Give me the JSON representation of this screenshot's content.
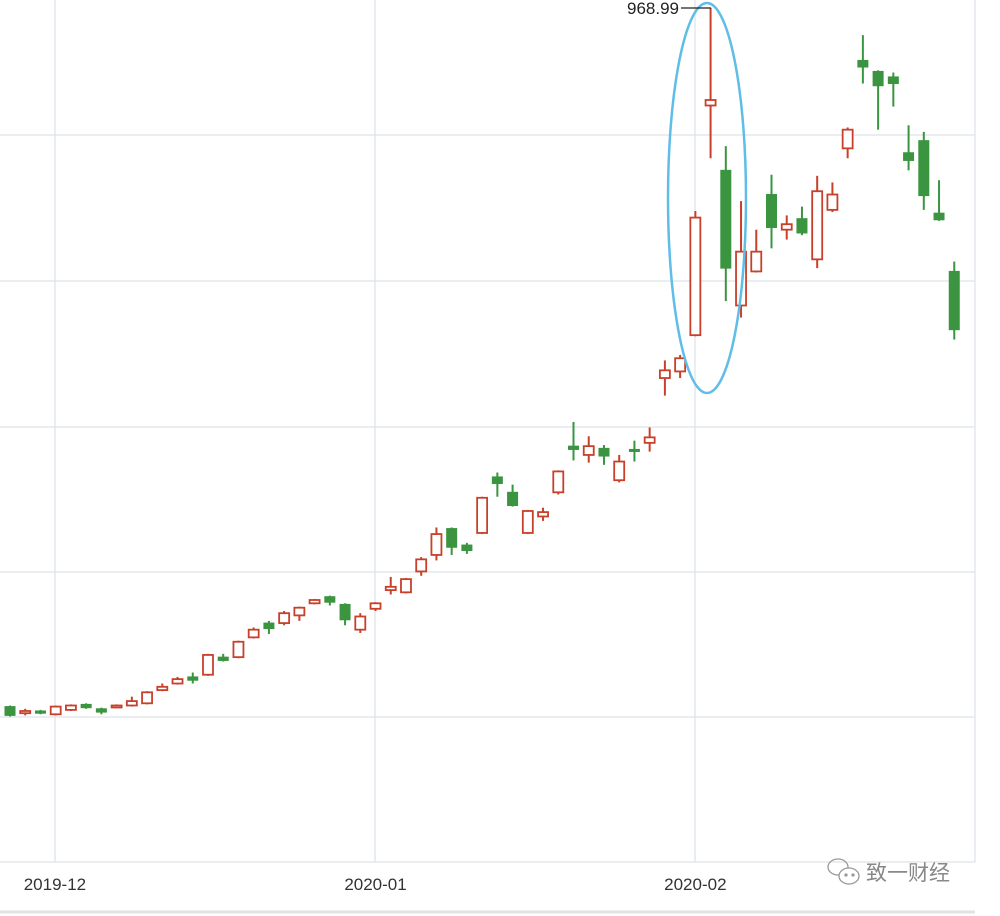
{
  "chart_data": {
    "type": "candlestick",
    "title": "",
    "xlabel": "",
    "ylabel": "",
    "grid": true,
    "colors": {
      "up": "#c8402a",
      "down": "#3a9440",
      "annotation_ellipse": "#5fbde8",
      "grid": "#dde3e8"
    },
    "x_ticks": [
      {
        "label": "2019-12",
        "index": 2.95
      },
      {
        "label": "2020-01",
        "index": 24.0
      },
      {
        "label": "2020-02",
        "index": 45.0
      }
    ],
    "annotation": {
      "label": "968.99",
      "candle_index": 46
    },
    "watermark": "致一财经",
    "candles": [
      [
        333,
        334,
        324,
        325
      ],
      [
        327,
        331,
        325,
        329
      ],
      [
        329,
        330,
        326,
        327
      ],
      [
        326,
        334,
        325,
        333
      ],
      [
        330,
        335,
        329,
        334
      ],
      [
        335,
        336,
        331,
        332
      ],
      [
        331,
        332,
        326,
        328
      ],
      [
        333,
        335,
        332,
        334
      ],
      [
        334,
        342,
        333,
        338
      ],
      [
        336,
        347,
        335,
        346
      ],
      [
        348,
        354,
        347,
        351
      ],
      [
        354,
        360,
        353,
        358
      ],
      [
        360,
        364,
        354,
        357
      ],
      [
        362,
        381,
        361,
        380
      ],
      [
        378,
        381,
        374,
        375
      ],
      [
        378,
        393,
        377,
        392
      ],
      [
        396,
        405,
        395,
        403
      ],
      [
        409,
        411,
        399,
        404
      ],
      [
        409,
        420,
        407,
        418
      ],
      [
        416,
        424,
        411,
        423
      ],
      [
        427,
        431,
        426,
        430
      ],
      [
        433,
        434,
        425,
        428
      ],
      [
        426,
        427,
        407,
        412
      ],
      [
        403,
        418,
        400,
        415
      ],
      [
        422,
        428,
        420,
        427
      ],
      [
        439,
        451,
        435,
        442
      ],
      [
        437,
        450,
        436,
        449
      ],
      [
        456,
        469,
        452,
        467
      ],
      [
        471,
        496,
        466,
        490
      ],
      [
        495,
        496,
        471,
        478
      ],
      [
        480,
        482,
        472,
        475
      ],
      [
        491,
        524,
        490,
        523
      ],
      [
        542,
        546,
        524,
        536
      ],
      [
        528,
        535,
        515,
        516
      ],
      [
        491,
        512,
        490,
        511
      ],
      [
        506,
        514,
        502,
        510
      ],
      [
        528,
        548,
        526,
        547
      ],
      [
        570,
        592,
        557,
        567
      ],
      [
        562,
        579,
        555,
        570
      ],
      [
        568,
        571,
        553,
        561
      ],
      [
        539,
        562,
        537,
        556
      ],
      [
        567,
        575,
        556,
        566
      ],
      [
        573,
        587,
        565,
        578
      ],
      [
        632,
        648,
        616,
        639
      ],
      [
        638,
        653,
        632,
        650
      ],
      [
        671,
        784,
        670,
        778
      ],
      [
        880,
        968.99,
        832,
        885
      ],
      [
        821,
        843,
        702,
        732
      ],
      [
        698,
        793,
        687,
        747
      ],
      [
        729,
        767,
        728,
        747
      ],
      [
        799,
        817,
        750,
        769
      ],
      [
        767,
        780,
        758,
        772
      ],
      [
        777,
        788,
        762,
        764
      ],
      [
        740,
        816,
        732,
        802
      ],
      [
        785,
        810,
        783,
        799
      ],
      [
        841,
        860,
        832,
        858
      ],
      [
        921,
        944,
        900,
        915
      ],
      [
        911,
        912,
        858,
        898
      ],
      [
        906,
        910,
        879,
        900
      ],
      [
        837,
        862,
        821,
        830
      ],
      [
        848,
        856,
        785,
        798
      ],
      [
        782,
        812,
        775,
        776
      ],
      [
        729,
        738,
        667,
        676
      ]
    ],
    "candle_format": [
      "open",
      "high",
      "low",
      "close"
    ]
  }
}
